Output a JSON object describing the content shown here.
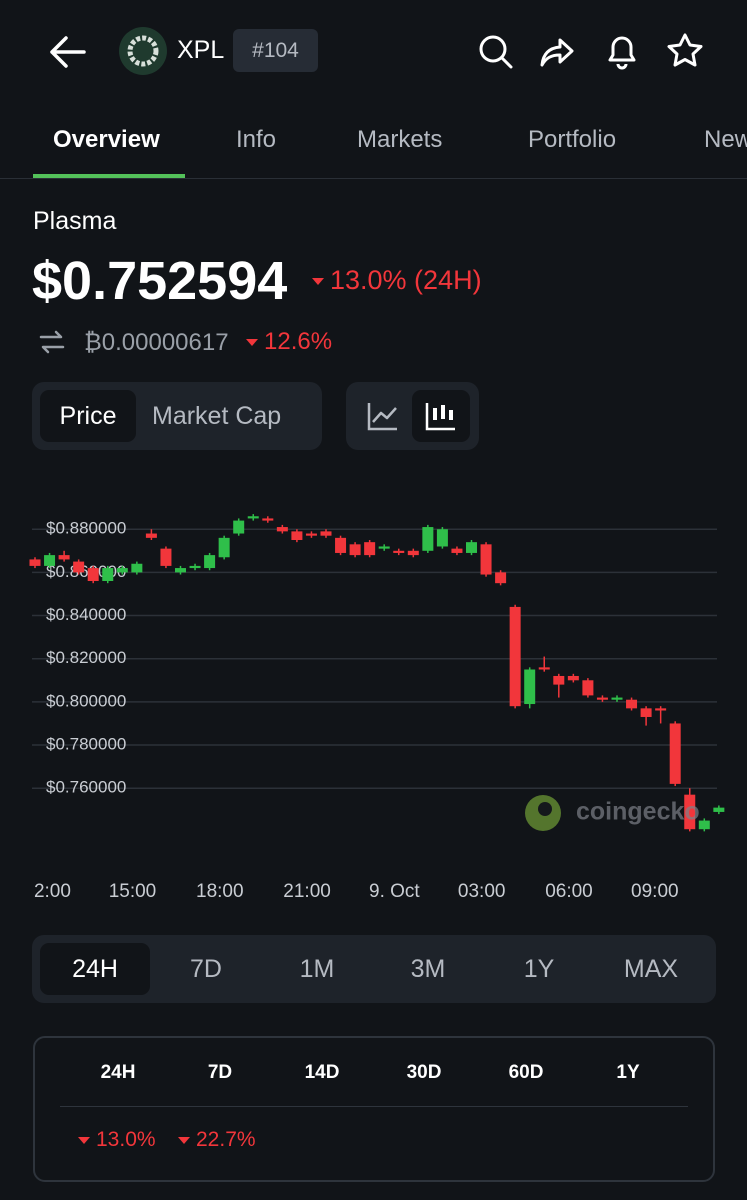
{
  "header": {
    "symbol": "XPL",
    "rank": "#104"
  },
  "tabs": [
    "Overview",
    "Info",
    "Markets",
    "Portfolio",
    "New"
  ],
  "coin": {
    "name": "Plasma",
    "price": "$0.752594",
    "change": "13.0% (24H)",
    "btc_price": "₿0.00000617",
    "btc_change": "12.6%"
  },
  "toggles": [
    "Price",
    "Market Cap"
  ],
  "watermark": "coingecko",
  "chart_data": {
    "type": "candlestick",
    "open": [
      0.866,
      0.863,
      0.868,
      0.865,
      0.862,
      0.856,
      0.86,
      0.86,
      0.878,
      0.871,
      0.86,
      0.862,
      0.862,
      0.867,
      0.878,
      0.885,
      0.885,
      0.881,
      0.879,
      0.878,
      0.879,
      0.876,
      0.873,
      0.874,
      0.871,
      0.87,
      0.87,
      0.87,
      0.872,
      0.871,
      0.869,
      0.873,
      0.86,
      0.844,
      0.799,
      0.816,
      0.812,
      0.812,
      0.81,
      0.802,
      0.801,
      0.801,
      0.797,
      0.797,
      0.79,
      0.757,
      0.741,
      0.749
    ],
    "high": [
      0.867,
      0.869,
      0.87,
      0.866,
      0.863,
      0.863,
      0.863,
      0.865,
      0.88,
      0.872,
      0.863,
      0.864,
      0.869,
      0.877,
      0.885,
      0.887,
      0.886,
      0.882,
      0.88,
      0.879,
      0.88,
      0.877,
      0.874,
      0.875,
      0.873,
      0.871,
      0.871,
      0.882,
      0.881,
      0.872,
      0.875,
      0.874,
      0.861,
      0.845,
      0.816,
      0.821,
      0.813,
      0.813,
      0.811,
      0.803,
      0.803,
      0.802,
      0.798,
      0.798,
      0.791,
      0.76,
      0.746,
      0.752
    ],
    "low": [
      0.862,
      0.862,
      0.865,
      0.859,
      0.855,
      0.855,
      0.859,
      0.859,
      0.875,
      0.862,
      0.859,
      0.861,
      0.861,
      0.866,
      0.877,
      0.884,
      0.883,
      0.878,
      0.874,
      0.876,
      0.876,
      0.868,
      0.867,
      0.867,
      0.87,
      0.868,
      0.867,
      0.869,
      0.871,
      0.868,
      0.868,
      0.858,
      0.854,
      0.797,
      0.797,
      0.814,
      0.802,
      0.809,
      0.802,
      0.8,
      0.8,
      0.796,
      0.789,
      0.79,
      0.761,
      0.74,
      0.74,
      0.748
    ],
    "close": [
      0.863,
      0.868,
      0.866,
      0.86,
      0.856,
      0.862,
      0.862,
      0.864,
      0.876,
      0.863,
      0.862,
      0.863,
      0.868,
      0.876,
      0.884,
      0.886,
      0.884,
      0.879,
      0.875,
      0.877,
      0.877,
      0.869,
      0.868,
      0.868,
      0.872,
      0.869,
      0.868,
      0.881,
      0.88,
      0.869,
      0.874,
      0.859,
      0.855,
      0.798,
      0.815,
      0.815,
      0.808,
      0.81,
      0.803,
      0.801,
      0.802,
      0.797,
      0.793,
      0.796,
      0.762,
      0.741,
      0.745,
      0.751
    ],
    "up_color": "#2fbf4a",
    "down_color": "#f2363b",
    "ylim": [
      0.736,
      0.894
    ],
    "yticks": [
      {
        "value": 0.88,
        "label": "$0.880000"
      },
      {
        "value": 0.86,
        "label": "$0.860000"
      },
      {
        "value": 0.84,
        "label": "$0.840000"
      },
      {
        "value": 0.82,
        "label": "$0.820000"
      },
      {
        "value": 0.8,
        "label": "$0.800000"
      },
      {
        "value": 0.78,
        "label": "$0.780000"
      },
      {
        "value": 0.76,
        "label": "$0.760000"
      }
    ],
    "xticks": [
      {
        "value": 1.2,
        "label": "2:00"
      },
      {
        "value": 6.7,
        "label": "15:00"
      },
      {
        "value": 12.7,
        "label": "18:00"
      },
      {
        "value": 18.7,
        "label": "21:00"
      },
      {
        "value": 24.7,
        "label": "9. Oct"
      },
      {
        "value": 30.7,
        "label": "03:00"
      },
      {
        "value": 36.7,
        "label": "06:00"
      },
      {
        "value": 42.6,
        "label": "09:00"
      }
    ],
    "grid": true
  },
  "ranges": [
    "24H",
    "7D",
    "1M",
    "3M",
    "1Y",
    "MAX"
  ],
  "performance": {
    "headers": [
      "24H",
      "7D",
      "14D",
      "30D",
      "60D",
      "1Y"
    ],
    "values": [
      "13.0%",
      "22.7%"
    ]
  }
}
